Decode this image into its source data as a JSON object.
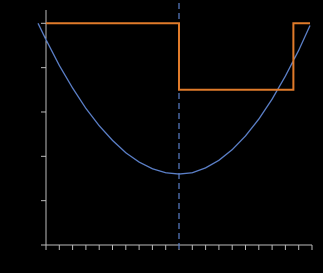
{
  "chart_data": {
    "type": "line",
    "series": [
      {
        "color": "#5b7fc7",
        "x": [
          -0.6,
          0,
          1,
          2,
          3,
          4,
          5,
          6,
          7,
          8,
          9,
          10,
          11,
          12,
          13,
          14,
          15,
          16,
          17,
          18,
          19,
          19.85
        ],
        "values": [
          5.0,
          4.63,
          4.05,
          3.54,
          3.08,
          2.69,
          2.36,
          2.08,
          1.87,
          1.72,
          1.63,
          1.6,
          1.63,
          1.74,
          1.91,
          2.15,
          2.46,
          2.84,
          3.29,
          3.81,
          4.39,
          4.95
        ]
      },
      {
        "color": "#e07b2a",
        "x": [
          0,
          10,
          10,
          18.6,
          18.6,
          19.85
        ],
        "values": [
          5,
          5,
          3.5,
          3.5,
          5,
          5
        ]
      }
    ],
    "vline": 10,
    "vline_color": "#5b7fc7",
    "xlim": [
      0,
      20
    ],
    "xticks": [
      0,
      1,
      2,
      3,
      4,
      5,
      6,
      7,
      8,
      9,
      10,
      11,
      12,
      13,
      14,
      15,
      16,
      17,
      18,
      19,
      20
    ],
    "ylim": [
      0,
      5.3
    ],
    "yticks": [
      0,
      1,
      2,
      3,
      4,
      5
    ]
  }
}
